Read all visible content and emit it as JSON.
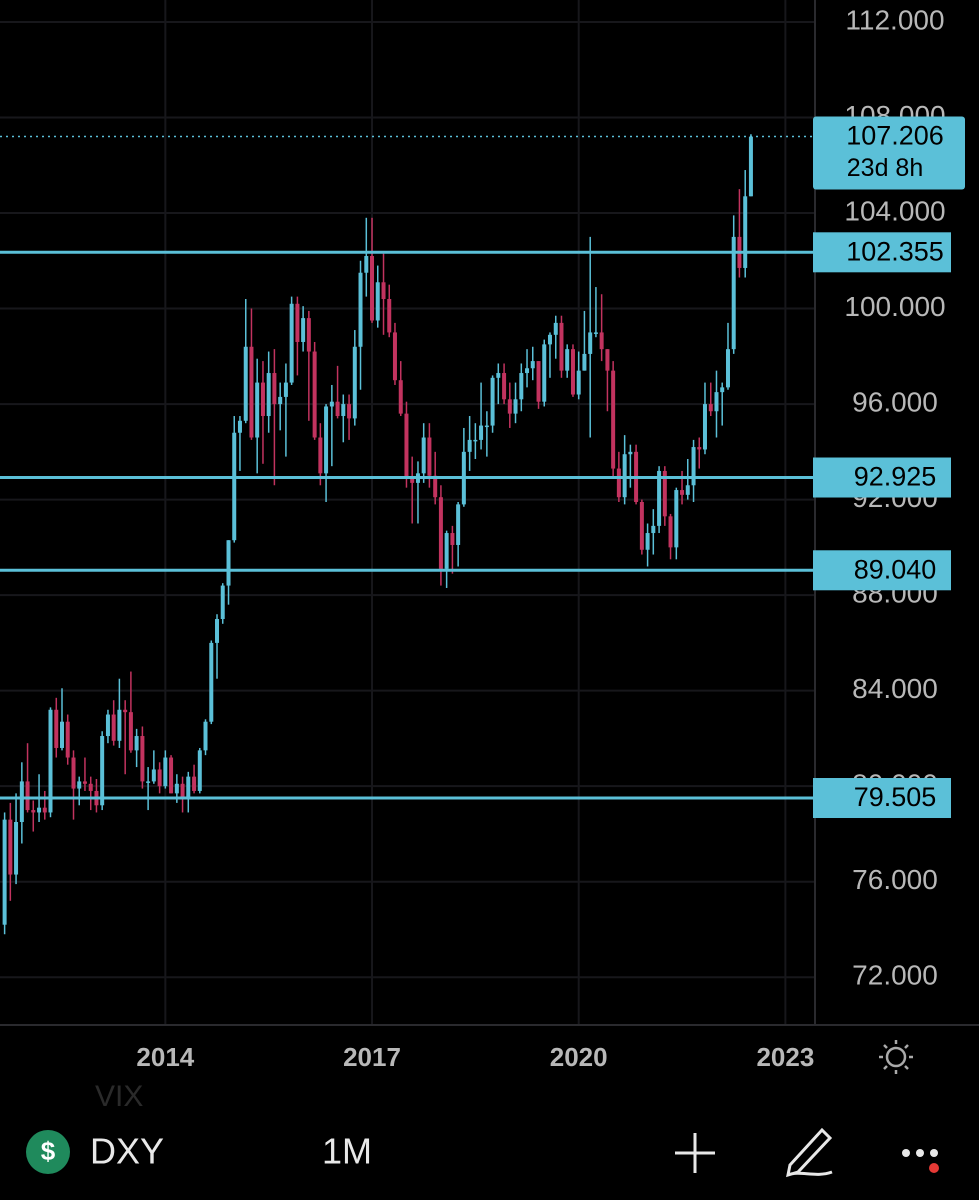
{
  "chart_data": {
    "type": "candlestick",
    "up_color": "#5bc0d8",
    "down_color": "#c2335f",
    "level_color": "#5bc0d8",
    "grid": true,
    "xlim": [
      2011.6,
      2023.43
    ],
    "xticks": [
      2014,
      2017,
      2020,
      2023
    ],
    "ylim": [
      70,
      112.92
    ],
    "yticks": [
      {
        "value": 112,
        "label": "112.000"
      },
      {
        "value": 108,
        "label": "108.000"
      },
      {
        "value": 104,
        "label": "104.000"
      },
      {
        "value": 100,
        "label": "100.000"
      },
      {
        "value": 96,
        "label": "96.000"
      },
      {
        "value": 92,
        "label": "92.000"
      },
      {
        "value": 88,
        "label": "88.000"
      },
      {
        "value": 84,
        "label": "84.000"
      },
      {
        "value": 80,
        "label": "80.000"
      },
      {
        "value": 76,
        "label": "76.000"
      },
      {
        "value": 72,
        "label": "72.000"
      }
    ],
    "levels": [
      102.355,
      92.925,
      {
        "value": 89.04,
        "label": "89.040"
      },
      79.505
    ],
    "last_price": 107.206,
    "countdown": "23d 8h",
    "x": [
      2011.667,
      2011.75,
      2011.833,
      2011.917,
      2012,
      2012.083,
      2012.167,
      2012.25,
      2012.333,
      2012.417,
      2012.5,
      2012.583,
      2012.667,
      2012.75,
      2012.833,
      2012.917,
      2013,
      2013.083,
      2013.167,
      2013.25,
      2013.333,
      2013.417,
      2013.5,
      2013.583,
      2013.667,
      2013.75,
      2013.833,
      2013.917,
      2014,
      2014.083,
      2014.167,
      2014.25,
      2014.333,
      2014.417,
      2014.5,
      2014.583,
      2014.667,
      2014.75,
      2014.833,
      2014.917,
      2015,
      2015.083,
      2015.167,
      2015.25,
      2015.333,
      2015.417,
      2015.5,
      2015.583,
      2015.667,
      2015.75,
      2015.833,
      2015.917,
      2016,
      2016.083,
      2016.167,
      2016.25,
      2016.333,
      2016.417,
      2016.5,
      2016.583,
      2016.667,
      2016.75,
      2016.833,
      2016.917,
      2017,
      2017.083,
      2017.167,
      2017.25,
      2017.333,
      2017.417,
      2017.5,
      2017.583,
      2017.667,
      2017.75,
      2017.833,
      2017.917,
      2018,
      2018.083,
      2018.167,
      2018.25,
      2018.333,
      2018.417,
      2018.5,
      2018.583,
      2018.667,
      2018.75,
      2018.833,
      2018.917,
      2019,
      2019.083,
      2019.167,
      2019.25,
      2019.333,
      2019.417,
      2019.5,
      2019.583,
      2019.667,
      2019.75,
      2019.833,
      2019.917,
      2020,
      2020.083,
      2020.167,
      2020.25,
      2020.333,
      2020.417,
      2020.5,
      2020.583,
      2020.667,
      2020.75,
      2020.833,
      2020.917,
      2021,
      2021.083,
      2021.167,
      2021.25,
      2021.333,
      2021.417,
      2021.5,
      2021.583,
      2021.667,
      2021.75,
      2021.833,
      2021.917,
      2022,
      2022.083,
      2022.167,
      2022.25,
      2022.333,
      2022.417,
      2022.5
    ],
    "ohlc": [
      [
        74.2,
        78.9,
        73.8,
        78.6
      ],
      [
        78.6,
        79.3,
        75.2,
        76.3
      ],
      [
        76.3,
        79.7,
        75.9,
        78.5
      ],
      [
        78.5,
        81.0,
        77.6,
        80.2
      ],
      [
        80.2,
        81.8,
        78.9,
        79.0
      ],
      [
        79.0,
        79.4,
        78.1,
        78.9
      ],
      [
        78.9,
        80.5,
        78.5,
        79.1
      ],
      [
        79.1,
        79.8,
        78.6,
        78.9
      ],
      [
        78.9,
        83.3,
        78.7,
        83.2
      ],
      [
        83.2,
        83.7,
        81.2,
        81.6
      ],
      [
        81.6,
        84.1,
        81.5,
        82.7
      ],
      [
        82.7,
        83.0,
        80.9,
        81.2
      ],
      [
        81.2,
        81.5,
        78.6,
        79.9
      ],
      [
        79.9,
        80.4,
        79.2,
        80.2
      ],
      [
        80.2,
        81.2,
        79.8,
        80.1
      ],
      [
        80.1,
        80.4,
        79.0,
        79.8
      ],
      [
        79.8,
        80.3,
        78.9,
        79.2
      ],
      [
        79.2,
        82.3,
        79.0,
        82.1
      ],
      [
        82.1,
        83.2,
        81.8,
        83.0
      ],
      [
        83.0,
        83.6,
        81.7,
        81.9
      ],
      [
        81.9,
        84.5,
        81.6,
        83.2
      ],
      [
        83.2,
        83.6,
        80.5,
        83.1
      ],
      [
        83.1,
        84.8,
        81.4,
        81.5
      ],
      [
        81.5,
        82.4,
        80.8,
        82.1
      ],
      [
        82.1,
        82.5,
        79.9,
        80.2
      ],
      [
        80.2,
        80.8,
        79.0,
        80.2
      ],
      [
        80.2,
        81.5,
        80.1,
        80.7
      ],
      [
        80.7,
        81.0,
        79.7,
        80.0
      ],
      [
        80.0,
        81.5,
        79.9,
        81.2
      ],
      [
        81.2,
        81.3,
        79.7,
        79.7
      ],
      [
        79.7,
        80.5,
        79.3,
        80.1
      ],
      [
        80.1,
        80.4,
        78.9,
        79.5
      ],
      [
        79.5,
        80.6,
        78.9,
        80.4
      ],
      [
        80.4,
        80.9,
        79.7,
        79.8
      ],
      [
        79.8,
        81.6,
        79.7,
        81.5
      ],
      [
        81.5,
        82.8,
        81.3,
        82.7
      ],
      [
        82.7,
        86.1,
        82.6,
        86.0
      ],
      [
        86.0,
        87.2,
        84.5,
        87.0
      ],
      [
        87.0,
        88.5,
        86.8,
        88.4
      ],
      [
        88.4,
        90.3,
        87.6,
        90.3
      ],
      [
        90.3,
        95.5,
        90.2,
        94.8
      ],
      [
        94.8,
        95.5,
        93.2,
        95.3
      ],
      [
        95.3,
        100.4,
        95.2,
        98.4
      ],
      [
        98.4,
        100.0,
        94.5,
        94.6
      ],
      [
        94.6,
        97.9,
        93.1,
        96.9
      ],
      [
        96.9,
        97.8,
        93.5,
        95.5
      ],
      [
        95.5,
        98.2,
        94.8,
        97.3
      ],
      [
        97.3,
        98.3,
        92.6,
        96.0
      ],
      [
        96.0,
        96.9,
        94.9,
        96.3
      ],
      [
        96.3,
        97.7,
        93.8,
        96.9
      ],
      [
        96.9,
        100.5,
        96.8,
        100.2
      ],
      [
        100.2,
        100.5,
        97.2,
        98.6
      ],
      [
        98.6,
        100.1,
        98.2,
        99.6
      ],
      [
        99.6,
        99.9,
        95.3,
        98.2
      ],
      [
        98.2,
        98.6,
        94.5,
        94.6
      ],
      [
        94.6,
        95.2,
        92.6,
        93.1
      ],
      [
        93.1,
        96.0,
        91.9,
        95.9
      ],
      [
        95.9,
        96.8,
        93.4,
        96.1
      ],
      [
        96.1,
        97.6,
        95.4,
        95.5
      ],
      [
        95.5,
        96.4,
        94.4,
        96.0
      ],
      [
        96.0,
        96.4,
        94.5,
        95.4
      ],
      [
        95.4,
        99.1,
        95.1,
        98.4
      ],
      [
        98.4,
        102.0,
        96.6,
        101.5
      ],
      [
        101.5,
        103.8,
        100.5,
        102.2
      ],
      [
        102.2,
        103.8,
        99.4,
        99.5
      ],
      [
        99.5,
        101.8,
        99.2,
        101.1
      ],
      [
        101.1,
        102.3,
        98.9,
        100.4
      ],
      [
        100.4,
        101.0,
        98.8,
        99.0
      ],
      [
        99.0,
        99.4,
        96.8,
        97.0
      ],
      [
        97.0,
        97.8,
        95.5,
        95.6
      ],
      [
        95.6,
        96.1,
        92.5,
        92.9
      ],
      [
        92.9,
        93.8,
        91.0,
        92.7
      ],
      [
        92.7,
        93.6,
        91.0,
        93.1
      ],
      [
        93.1,
        95.2,
        92.7,
        94.6
      ],
      [
        94.6,
        95.2,
        92.5,
        93.0
      ],
      [
        93.0,
        94.0,
        91.8,
        92.1
      ],
      [
        92.1,
        92.6,
        88.4,
        89.1
      ],
      [
        89.1,
        90.7,
        88.3,
        90.6
      ],
      [
        90.6,
        90.9,
        88.9,
        90.1
      ],
      [
        90.1,
        91.9,
        89.2,
        91.8
      ],
      [
        91.8,
        95.0,
        91.7,
        94.0
      ],
      [
        94.0,
        95.5,
        93.2,
        94.5
      ],
      [
        94.5,
        95.2,
        93.7,
        94.5
      ],
      [
        94.5,
        96.9,
        94.1,
        95.1
      ],
      [
        95.1,
        95.7,
        93.8,
        95.1
      ],
      [
        95.1,
        97.2,
        94.8,
        97.1
      ],
      [
        97.1,
        97.7,
        96.0,
        97.3
      ],
      [
        97.3,
        97.7,
        96.0,
        96.2
      ],
      [
        96.2,
        96.9,
        95.0,
        95.6
      ],
      [
        95.6,
        96.9,
        95.2,
        96.2
      ],
      [
        96.2,
        97.7,
        95.7,
        97.3
      ],
      [
        97.3,
        98.3,
        96.7,
        97.5
      ],
      [
        97.5,
        98.4,
        97.0,
        97.8
      ],
      [
        97.8,
        97.8,
        95.8,
        96.1
      ],
      [
        96.1,
        98.7,
        95.9,
        98.5
      ],
      [
        98.5,
        99.0,
        97.1,
        98.9
      ],
      [
        98.9,
        99.7,
        97.9,
        99.4
      ],
      [
        99.4,
        99.7,
        97.1,
        97.4
      ],
      [
        97.4,
        98.5,
        97.1,
        98.3
      ],
      [
        98.3,
        98.5,
        96.3,
        96.4
      ],
      [
        96.4,
        98.2,
        96.2,
        97.4
      ],
      [
        97.4,
        99.9,
        97.4,
        98.1
      ],
      [
        98.1,
        103.0,
        94.6,
        99.0
      ],
      [
        99.0,
        100.9,
        98.8,
        99.0
      ],
      [
        99.0,
        100.6,
        97.8,
        98.3
      ],
      [
        98.3,
        98.3,
        95.7,
        97.4
      ],
      [
        97.4,
        97.8,
        92.9,
        93.3
      ],
      [
        93.3,
        94.0,
        91.9,
        92.1
      ],
      [
        92.1,
        94.7,
        91.8,
        93.9
      ],
      [
        93.9,
        94.3,
        92.5,
        94.0
      ],
      [
        94.0,
        94.3,
        91.8,
        91.9
      ],
      [
        91.9,
        92.0,
        89.7,
        89.9
      ],
      [
        89.9,
        91.0,
        89.2,
        90.6
      ],
      [
        90.6,
        91.6,
        89.7,
        90.9
      ],
      [
        90.9,
        93.4,
        90.6,
        93.2
      ],
      [
        93.2,
        93.4,
        90.9,
        91.3
      ],
      [
        91.3,
        91.4,
        89.5,
        90.0
      ],
      [
        90.0,
        92.5,
        89.5,
        92.4
      ],
      [
        92.4,
        93.2,
        91.8,
        92.2
      ],
      [
        92.2,
        93.7,
        92.0,
        92.6
      ],
      [
        92.6,
        94.5,
        91.9,
        94.2
      ],
      [
        94.2,
        94.6,
        93.3,
        94.1
      ],
      [
        94.1,
        96.9,
        93.9,
        96.0
      ],
      [
        96.0,
        96.9,
        95.5,
        95.7
      ],
      [
        95.7,
        97.4,
        94.6,
        96.5
      ],
      [
        96.5,
        96.9,
        95.1,
        96.7
      ],
      [
        96.7,
        99.4,
        96.6,
        98.3
      ],
      [
        98.3,
        103.9,
        98.1,
        103.0
      ],
      [
        103.0,
        105.0,
        101.3,
        101.7
      ],
      [
        101.7,
        105.8,
        101.3,
        104.7
      ],
      [
        104.7,
        107.3,
        104.7,
        107.2
      ]
    ]
  },
  "toolbar": {
    "currency_icon": "$",
    "symbol": "DXY",
    "interval": "1M",
    "overlay_text": "VIX"
  }
}
